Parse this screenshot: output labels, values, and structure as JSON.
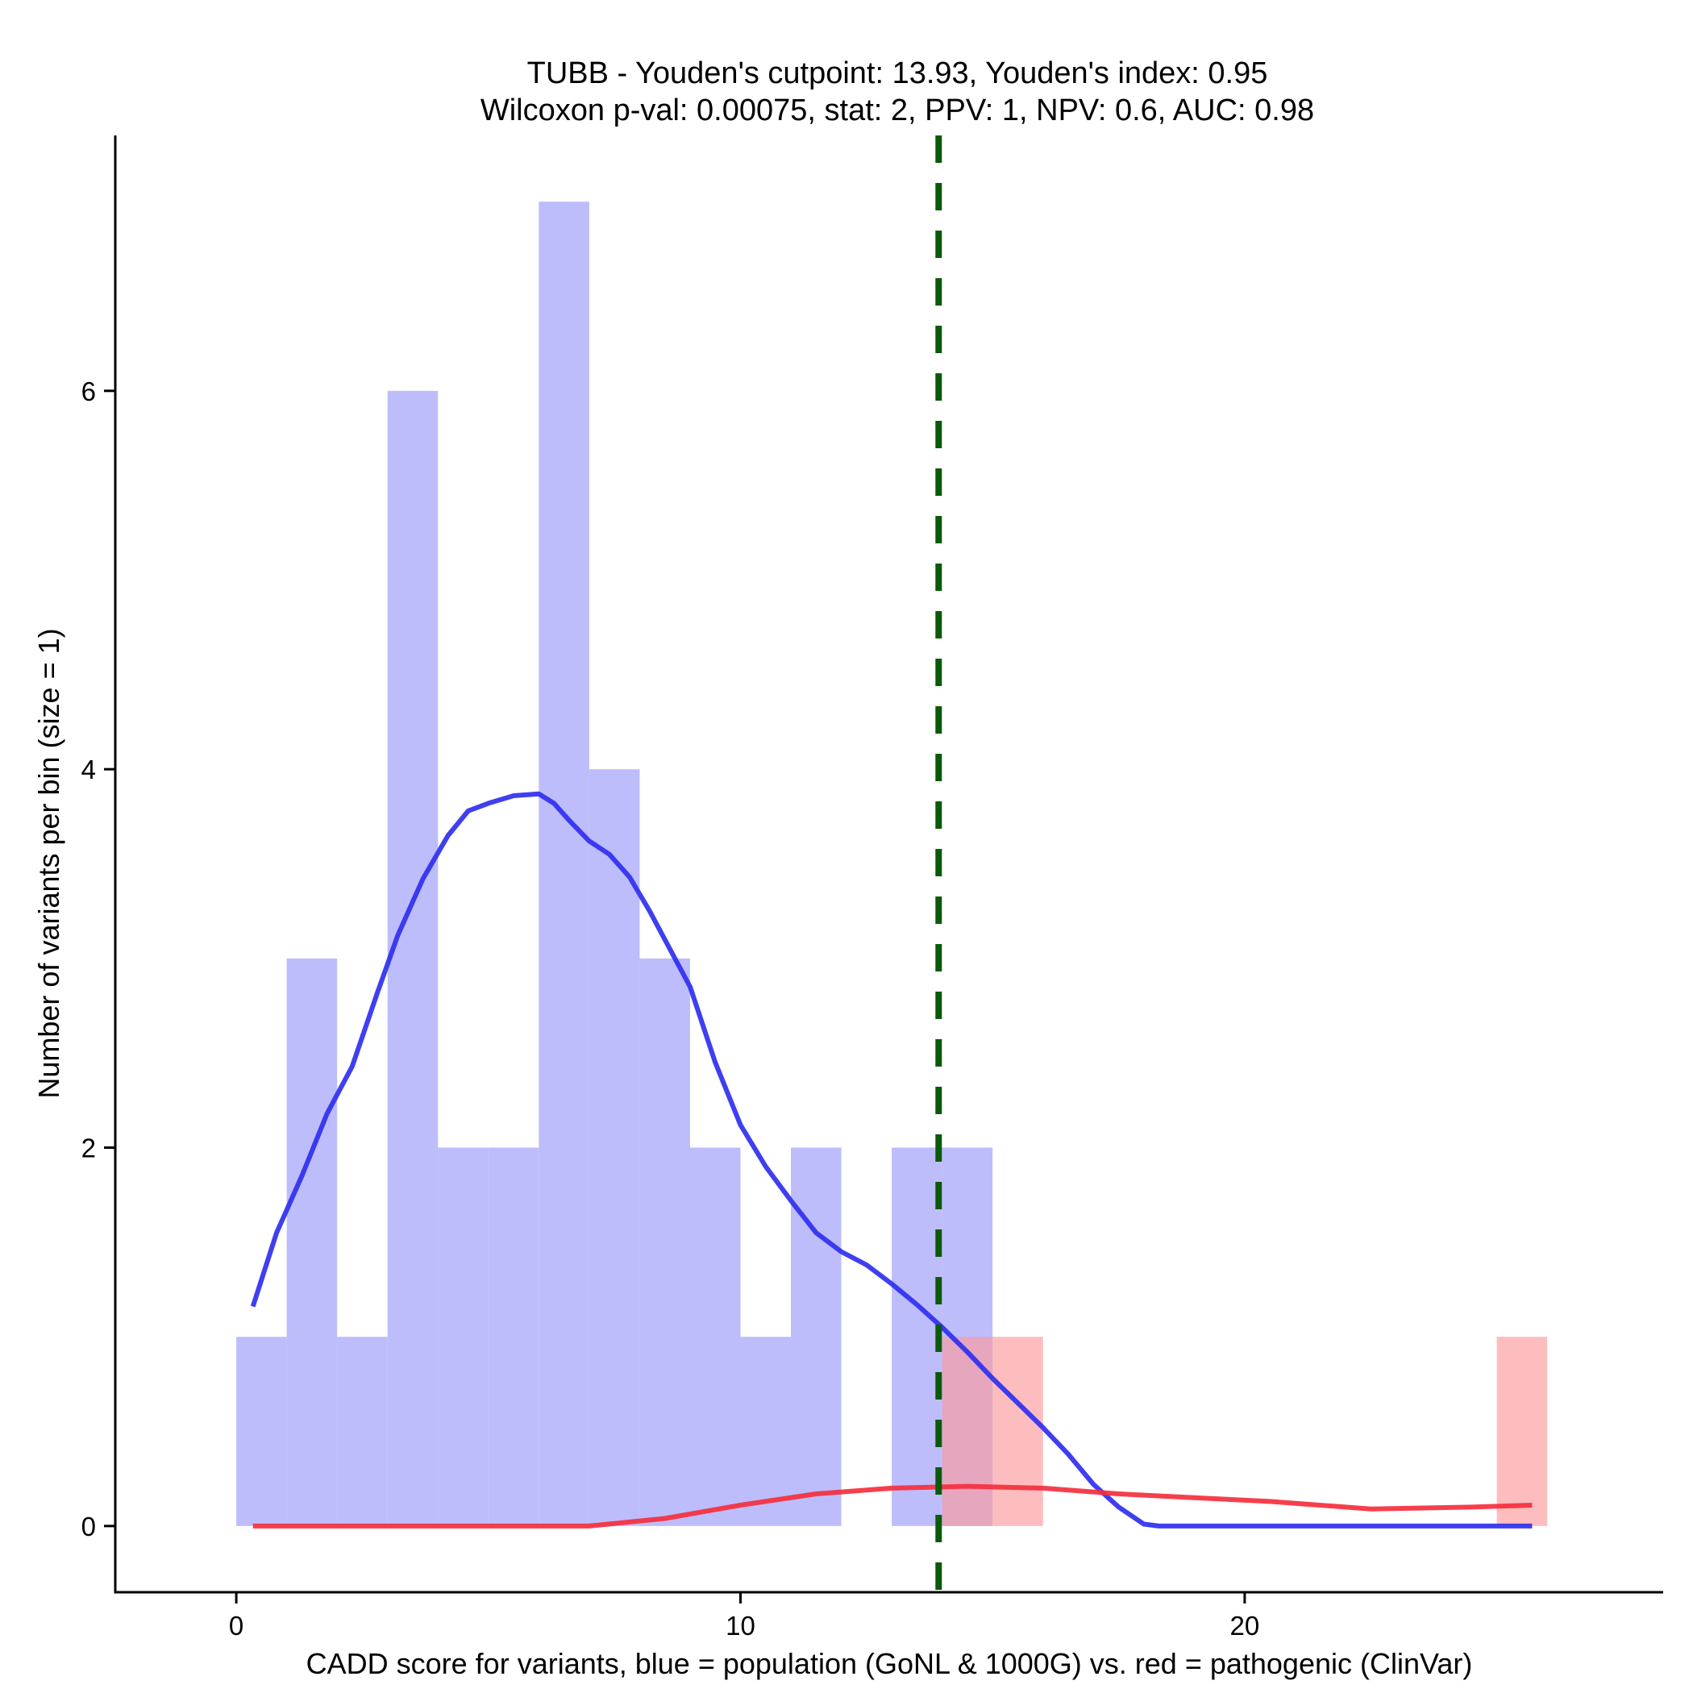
{
  "chart_data": {
    "type": "histogram",
    "title_lines": [
      "TUBB - Youden's cutpoint: 13.93, Youden's index: 0.95",
      "Wilcoxon p-val: 0.00075, stat: 2, PPV: 1, NPV: 0.6, AUC: 0.98"
    ],
    "xlabel": "CADD score for variants, blue = population (GoNL & 1000G) vs. red = pathogenic (ClinVar)",
    "ylabel": "Number of variants per bin (size = 1)",
    "xlim": [
      -2.4,
      28.3
    ],
    "ylim": [
      -0.35,
      7.35
    ],
    "x_ticks": [
      0,
      10,
      20
    ],
    "x_tick_labels": [
      "0",
      "10",
      "20"
    ],
    "y_ticks": [
      0,
      2,
      4,
      6
    ],
    "y_tick_labels": [
      "0",
      "2",
      "4",
      "6"
    ],
    "bin_size": 1,
    "cutpoint": 13.93,
    "colors": {
      "population_bar": "#a3a3fb",
      "pathogenic_bar": "#fc9a9c",
      "population_line": "#2f2ff0",
      "pathogenic_line": "#f52f3d",
      "cutpoint_line": "#0a5a0a"
    },
    "series": [
      {
        "name": "population (GoNL & 1000G)",
        "bins": [
          {
            "start": 0,
            "count": 1
          },
          {
            "start": 1,
            "count": 3
          },
          {
            "start": 2,
            "count": 1
          },
          {
            "start": 3,
            "count": 6
          },
          {
            "start": 4,
            "count": 2
          },
          {
            "start": 5,
            "count": 2
          },
          {
            "start": 6,
            "count": 7
          },
          {
            "start": 7,
            "count": 4
          },
          {
            "start": 8,
            "count": 3
          },
          {
            "start": 9,
            "count": 2
          },
          {
            "start": 10,
            "count": 1
          },
          {
            "start": 11,
            "count": 2
          },
          {
            "start": 13,
            "count": 2
          },
          {
            "start": 14,
            "count": 2
          }
        ],
        "density_curve": [
          [
            0.33,
            1.16
          ],
          [
            0.8,
            1.55
          ],
          [
            1.3,
            1.85
          ],
          [
            1.8,
            2.18
          ],
          [
            2.3,
            2.43
          ],
          [
            2.8,
            2.82
          ],
          [
            3.2,
            3.12
          ],
          [
            3.7,
            3.42
          ],
          [
            4.2,
            3.65
          ],
          [
            4.6,
            3.78
          ],
          [
            5.0,
            3.82
          ],
          [
            5.5,
            3.86
          ],
          [
            6.0,
            3.87
          ],
          [
            6.3,
            3.82
          ],
          [
            6.6,
            3.73
          ],
          [
            7.0,
            3.62
          ],
          [
            7.4,
            3.55
          ],
          [
            7.8,
            3.43
          ],
          [
            8.2,
            3.25
          ],
          [
            8.6,
            3.05
          ],
          [
            9.0,
            2.85
          ],
          [
            9.5,
            2.45
          ],
          [
            10.0,
            2.12
          ],
          [
            10.5,
            1.9
          ],
          [
            11.0,
            1.72
          ],
          [
            11.5,
            1.55
          ],
          [
            12.0,
            1.45
          ],
          [
            12.5,
            1.38
          ],
          [
            13.0,
            1.28
          ],
          [
            13.5,
            1.17
          ],
          [
            14.0,
            1.05
          ],
          [
            14.5,
            0.92
          ],
          [
            15.0,
            0.78
          ],
          [
            15.5,
            0.65
          ],
          [
            16.0,
            0.52
          ],
          [
            16.5,
            0.38
          ],
          [
            17.0,
            0.22
          ],
          [
            17.5,
            0.1
          ],
          [
            18.0,
            0.01
          ],
          [
            18.3,
            0.0
          ],
          [
            20.0,
            0.0
          ],
          [
            25.7,
            0.0
          ]
        ]
      },
      {
        "name": "pathogenic (ClinVar)",
        "bins": [
          {
            "start": 14,
            "count": 1
          },
          {
            "start": 15,
            "count": 1
          },
          {
            "start": 25,
            "count": 1
          }
        ],
        "density_curve": [
          [
            0.33,
            0.0
          ],
          [
            7.0,
            0.0
          ],
          [
            8.5,
            0.04
          ],
          [
            10.0,
            0.11
          ],
          [
            11.5,
            0.17
          ],
          [
            13.0,
            0.2
          ],
          [
            14.5,
            0.21
          ],
          [
            16.0,
            0.2
          ],
          [
            17.5,
            0.17
          ],
          [
            19.0,
            0.15
          ],
          [
            20.5,
            0.13
          ],
          [
            22.5,
            0.09
          ],
          [
            24.5,
            0.1
          ],
          [
            25.7,
            0.11
          ]
        ]
      }
    ]
  }
}
